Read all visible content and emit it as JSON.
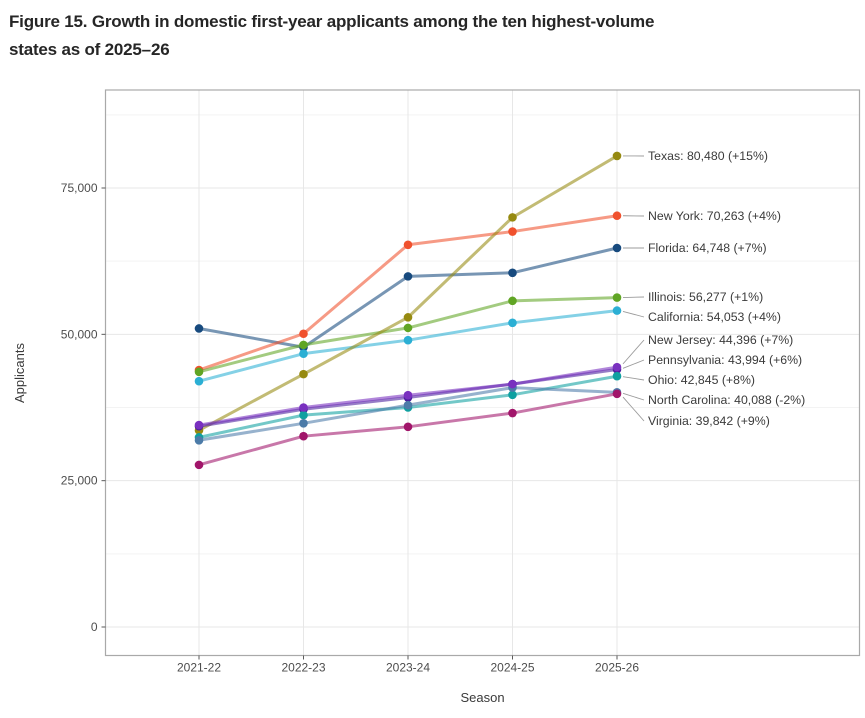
{
  "figure": {
    "title_line1": "Figure 15. Growth in domestic first-year applicants among the ten highest-volume",
    "title_line2": "states as of 2025–26"
  },
  "chart_data": {
    "type": "line",
    "title": "Growth in domestic first-year applicants among the ten highest-volume states as of 2025-26",
    "xlabel": "Season",
    "ylabel": "Applicants",
    "categories": [
      "2021-22",
      "2022-23",
      "2023-24",
      "2024-25",
      "2025-26"
    ],
    "y_ticks": [
      {
        "value": 0,
        "label": "0"
      },
      {
        "value": 25000,
        "label": "25,000"
      },
      {
        "value": 50000,
        "label": "50,000"
      },
      {
        "value": 75000,
        "label": "75,000"
      }
    ],
    "y_minor_ticks": [
      12500,
      37500,
      62500,
      87500
    ],
    "ylim": [
      0,
      91000
    ],
    "grid": "major-and-minor-horizontal, major-vertical",
    "legend": "inline-right-labels",
    "series": [
      {
        "name": "Texas",
        "color": "#968a10",
        "values": [
          33600,
          43200,
          52900,
          69980,
          80480
        ],
        "label": "Texas: 80,480 (+15%)"
      },
      {
        "name": "New York",
        "color": "#f0512d",
        "values": [
          43900,
          50100,
          65300,
          67560,
          70263
        ],
        "label": "New York: 70,263 (+4%)"
      },
      {
        "name": "Florida",
        "color": "#174a7e",
        "values": [
          51000,
          47800,
          59900,
          60510,
          64748
        ],
        "label": "Florida: 64,748 (+7%)"
      },
      {
        "name": "Illinois",
        "color": "#60a524",
        "values": [
          43600,
          48200,
          51100,
          55720,
          56277
        ],
        "label": "Illinois: 56,277 (+1%)"
      },
      {
        "name": "California",
        "color": "#2bafd4",
        "values": [
          42000,
          46700,
          49000,
          51970,
          54053
        ],
        "label": "California: 54,053 (+4%)"
      },
      {
        "name": "New Jersey",
        "color": "#7930bf",
        "values": [
          34500,
          37500,
          39600,
          41490,
          44396
        ],
        "label": "New Jersey: 44,396 (+7%)"
      },
      {
        "name": "Pennsylvania",
        "color": "#4a1f9c",
        "values": [
          34300,
          37200,
          39200,
          41500,
          43994
        ],
        "label": "Pennsylvania: 43,994 (+6%)"
      },
      {
        "name": "Ohio",
        "color": "#0ea0a0",
        "values": [
          32400,
          36200,
          37500,
          39670,
          42845
        ],
        "label": "Ohio: 42,845 (+8%)"
      },
      {
        "name": "North Carolina",
        "color": "#4c7ba8",
        "values": [
          31900,
          34800,
          37900,
          40900,
          40088
        ],
        "label": "North Carolina: 40,088 (-2%)"
      },
      {
        "name": "Virginia",
        "color": "#a1156a",
        "values": [
          27700,
          32600,
          34200,
          36550,
          39842
        ],
        "label": "Virginia: 39,842 (+9%)"
      }
    ]
  }
}
